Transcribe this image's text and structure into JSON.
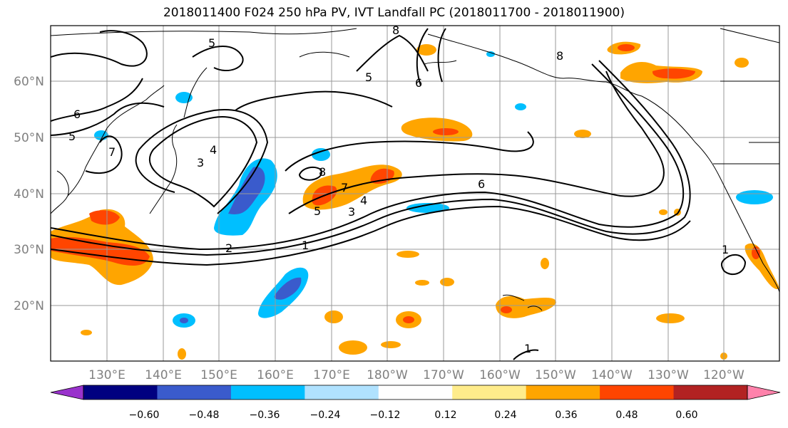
{
  "title": "2018011400 F024 250 hPa PV, IVT Landfall PC (2018011700 - 2018011900)",
  "lon_labels": [
    "130°E",
    "140°E",
    "150°E",
    "160°E",
    "170°E",
    "180°W",
    "170°W",
    "160°W",
    "150°W",
    "140°W",
    "130°W",
    "120°W"
  ],
  "lat_labels": [
    "60°N",
    "50°N",
    "40°N",
    "30°N",
    "20°N"
  ],
  "contour_labels": [
    "6",
    "5",
    "7",
    "3",
    "4",
    "8",
    "7",
    "4",
    "5",
    "3",
    "2",
    "1",
    "6",
    "5",
    "5",
    "6",
    "8",
    "1",
    "1",
    "8"
  ],
  "colorbar": {
    "ticks": [
      "−0.60",
      "−0.48",
      "−0.36",
      "−0.24",
      "−0.12",
      "0.12",
      "0.24",
      "0.36",
      "0.48",
      "0.60"
    ],
    "colors": [
      "#9932cc",
      "#000080",
      "#3a5bcc",
      "#00bfff",
      "#b0e2ff",
      "#ffffff",
      "#ffec8b",
      "#ffa500",
      "#ff4500",
      "#b22222",
      "#ff82ab"
    ]
  }
}
